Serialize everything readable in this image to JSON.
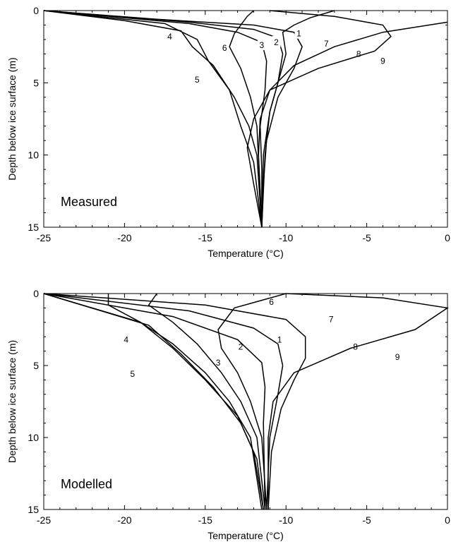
{
  "chart_data": [
    {
      "type": "line",
      "panel_label": "Measured",
      "xlabel": "Temperature (°C)",
      "ylabel": "Depth below ice surface (m)",
      "xlim": [
        -25,
        0
      ],
      "ylim": [
        0,
        15
      ],
      "y_inverted": true,
      "x_ticks": [
        "-25",
        "-20",
        "-15",
        "-10",
        "-5",
        "0"
      ],
      "y_ticks": [
        "0",
        "5",
        "10",
        "15"
      ],
      "series": [
        {
          "name": "1",
          "label_at": [
            -9.2,
            1.6
          ],
          "points": [
            [
              -25,
              0
            ],
            [
              -18,
              0.6
            ],
            [
              -12,
              1.0
            ],
            [
              -9.5,
              1.5
            ],
            [
              -9.0,
              2.5
            ],
            [
              -9.5,
              4
            ],
            [
              -10.5,
              6
            ],
            [
              -11.2,
              9
            ],
            [
              -11.4,
              12
            ],
            [
              -11.5,
              15
            ]
          ]
        },
        {
          "name": "2",
          "label_at": [
            -10.6,
            2.2
          ],
          "points": [
            [
              -25,
              0
            ],
            [
              -16,
              0.8
            ],
            [
              -12,
              1.3
            ],
            [
              -10.5,
              1.9
            ],
            [
              -10.2,
              3
            ],
            [
              -10.5,
              5
            ],
            [
              -11,
              7
            ],
            [
              -11.3,
              10
            ],
            [
              -11.5,
              15
            ]
          ]
        },
        {
          "name": "3",
          "label_at": [
            -11.5,
            2.4
          ],
          "points": [
            [
              -25,
              0
            ],
            [
              -16,
              0.9
            ],
            [
              -13,
              1.5
            ],
            [
              -11.5,
              2.2
            ],
            [
              -11.2,
              3.5
            ],
            [
              -11.3,
              5.5
            ],
            [
              -11.6,
              8
            ],
            [
              -11.5,
              11
            ],
            [
              -11.5,
              15
            ]
          ]
        },
        {
          "name": "4",
          "label_at": [
            -17.2,
            1.8
          ],
          "points": [
            [
              -25,
              0
            ],
            [
              -20,
              0.7
            ],
            [
              -16.5,
              1.4
            ],
            [
              -15.8,
              2.5
            ],
            [
              -14.5,
              3.8
            ],
            [
              -13.2,
              6
            ],
            [
              -12.3,
              8
            ],
            [
              -11.8,
              10
            ],
            [
              -11.5,
              15
            ]
          ]
        },
        {
          "name": "5",
          "label_at": [
            -15.5,
            4.8
          ],
          "points": [
            [
              -25,
              0
            ],
            [
              -17.5,
              0.9
            ],
            [
              -15.5,
              2
            ],
            [
              -14.8,
              3.5
            ],
            [
              -13.5,
              5.5
            ],
            [
              -12.8,
              8
            ],
            [
              -12,
              10.5
            ],
            [
              -11.5,
              15
            ]
          ]
        },
        {
          "name": "6",
          "label_at": [
            -13.8,
            2.6
          ],
          "points": [
            [
              -12,
              0
            ],
            [
              -12.4,
              0.4
            ],
            [
              -13.2,
              1.6
            ],
            [
              -13.5,
              2.5
            ],
            [
              -12.8,
              4
            ],
            [
              -12.2,
              6
            ],
            [
              -11.8,
              8
            ],
            [
              -11.5,
              15
            ]
          ]
        },
        {
          "name": "7",
          "label_at": [
            -7.5,
            2.3
          ],
          "points": [
            [
              -7,
              0
            ],
            [
              -8.5,
              0.5
            ],
            [
              -9.5,
              1
            ],
            [
              -10.2,
              1.5
            ],
            [
              -10,
              3
            ],
            [
              -10.5,
              5
            ],
            [
              -11,
              7
            ],
            [
              -11.4,
              10
            ],
            [
              -11.5,
              15
            ]
          ]
        },
        {
          "name": "8",
          "label_at": [
            -5.5,
            3.0
          ],
          "points": [
            [
              0,
              0.8
            ],
            [
              -4,
              1.5
            ],
            [
              -7,
              2.5
            ],
            [
              -9.5,
              3.8
            ],
            [
              -11,
              5.5
            ],
            [
              -11.6,
              7.5
            ],
            [
              -11.7,
              10
            ],
            [
              -11.5,
              15
            ]
          ]
        },
        {
          "name": "9",
          "label_at": [
            -4.0,
            3.5
          ],
          "points": [
            [
              -11,
              0
            ],
            [
              -7,
              0.4
            ],
            [
              -4,
              1
            ],
            [
              -3.5,
              1.8
            ],
            [
              -4.5,
              2.8
            ],
            [
              -8,
              4
            ],
            [
              -11,
              5.5
            ],
            [
              -12,
              7.5
            ],
            [
              -12.4,
              9.5
            ],
            [
              -12,
              12
            ],
            [
              -11.5,
              15
            ]
          ]
        }
      ]
    },
    {
      "type": "line",
      "panel_label": "Modelled",
      "xlabel": "Temperature (°C)",
      "ylabel": "Depth below ice surface (m)",
      "xlim": [
        -25,
        0
      ],
      "ylim": [
        0,
        15
      ],
      "y_inverted": true,
      "x_ticks": [
        "-25",
        "-20",
        "-15",
        "-10",
        "-5",
        "0"
      ],
      "y_ticks": [
        "0",
        "5",
        "10",
        "15"
      ],
      "series": [
        {
          "name": "1",
          "label_at": [
            -10.4,
            3.2
          ],
          "points": [
            [
              -25,
              0
            ],
            [
              -15,
              0.8
            ],
            [
              -10,
              1.8
            ],
            [
              -8.8,
              3
            ],
            [
              -8.8,
              4.5
            ],
            [
              -9.5,
              6
            ],
            [
              -10.3,
              8
            ],
            [
              -10.9,
              11
            ],
            [
              -11.1,
              15
            ]
          ]
        },
        {
          "name": "2",
          "label_at": [
            -12.8,
            3.7
          ],
          "points": [
            [
              -25,
              0
            ],
            [
              -16,
              1.2
            ],
            [
              -12,
              2.4
            ],
            [
              -10.5,
              3.5
            ],
            [
              -10.2,
              5
            ],
            [
              -10.5,
              7
            ],
            [
              -11,
              10
            ],
            [
              -11.2,
              15
            ]
          ]
        },
        {
          "name": "3",
          "label_at": [
            -14.2,
            4.8
          ],
          "points": [
            [
              -25,
              0
            ],
            [
              -17,
              1.6
            ],
            [
              -13,
              3.2
            ],
            [
              -11.5,
              4.8
            ],
            [
              -11.3,
              6.5
            ],
            [
              -11.4,
              9
            ],
            [
              -11.3,
              15
            ]
          ]
        },
        {
          "name": "4",
          "label_at": [
            -19.9,
            3.2
          ],
          "points": [
            [
              -25,
              0
            ],
            [
              -19,
              2
            ],
            [
              -17,
              3.8
            ],
            [
              -15,
              6
            ],
            [
              -13,
              8.5
            ],
            [
              -12,
              11
            ],
            [
              -11.4,
              15
            ]
          ]
        },
        {
          "name": "5",
          "label_at": [
            -19.5,
            5.6
          ],
          "points": [
            [
              -25,
              0
            ],
            [
              -18.5,
              2.2
            ],
            [
              -16.5,
              4.2
            ],
            [
              -14.5,
              6.5
            ],
            [
              -12.8,
              9
            ],
            [
              -11.8,
              11.5
            ],
            [
              -11.4,
              15
            ]
          ]
        },
        {
          "name": "6",
          "label_at": [
            -10.9,
            0.6
          ],
          "points": [
            [
              -21,
              0
            ],
            [
              -21,
              0.8
            ],
            [
              -19,
              2
            ],
            [
              -17,
              3.5
            ],
            [
              -15,
              5.5
            ],
            [
              -13.5,
              7.5
            ],
            [
              -12.2,
              10
            ],
            [
              -11.5,
              15
            ]
          ]
        },
        {
          "name": "7",
          "label_at": [
            -7.2,
            1.8
          ],
          "points": [
            [
              -18,
              0
            ],
            [
              -18.5,
              0.8
            ],
            [
              -17,
              2
            ],
            [
              -15.5,
              3.5
            ],
            [
              -14,
              5.5
            ],
            [
              -12.8,
              7.5
            ],
            [
              -11.8,
              10
            ],
            [
              -11.3,
              15
            ]
          ]
        },
        {
          "name": "8",
          "label_at": [
            -5.7,
            3.7
          ],
          "points": [
            [
              -10,
              0
            ],
            [
              -13.2,
              1
            ],
            [
              -14.2,
              2.5
            ],
            [
              -14,
              3.8
            ],
            [
              -13,
              5.5
            ],
            [
              -12.2,
              7.5
            ],
            [
              -11.5,
              10
            ],
            [
              -11.2,
              15
            ]
          ]
        },
        {
          "name": "9",
          "label_at": [
            -3.1,
            4.4
          ],
          "points": [
            [
              -10,
              0
            ],
            [
              -4,
              0.3
            ],
            [
              0,
              1
            ],
            [
              -2,
              2.5
            ],
            [
              -6,
              3.8
            ],
            [
              -9.5,
              5.5
            ],
            [
              -10.8,
              7.5
            ],
            [
              -11.1,
              10
            ],
            [
              -11.1,
              15
            ]
          ]
        }
      ]
    }
  ]
}
